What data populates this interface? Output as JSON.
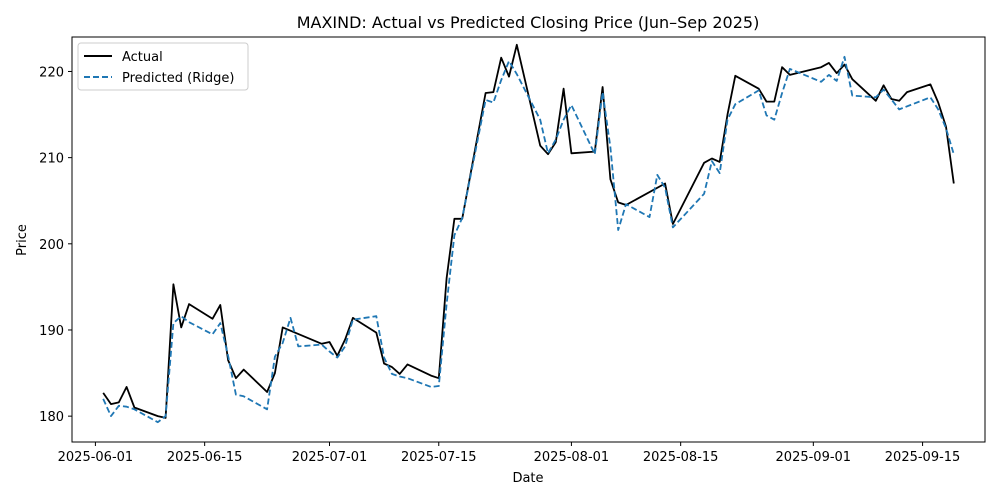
{
  "chart_data": {
    "type": "line",
    "title": "MAXIND: Actual vs Predicted Closing Price (Jun–Sep 2025)",
    "xlabel": "Date",
    "ylabel": "Price",
    "xlim": [
      "2025-05-29",
      "2025-09-23"
    ],
    "ylim": [
      177,
      224
    ],
    "x_ticks": [
      "2025-06-01",
      "2025-06-15",
      "2025-07-01",
      "2025-07-15",
      "2025-08-01",
      "2025-08-15",
      "2025-09-01",
      "2025-09-15"
    ],
    "y_ticks": [
      180,
      190,
      200,
      210,
      220
    ],
    "legend_position": "top-left",
    "series": [
      {
        "name": "Actual",
        "color": "#000000",
        "style": "solid",
        "points": [
          [
            "2025-06-02",
            182.7
          ],
          [
            "2025-06-03",
            181.4
          ],
          [
            "2025-06-04",
            181.6
          ],
          [
            "2025-06-05",
            183.4
          ],
          [
            "2025-06-06",
            181.0
          ],
          [
            "2025-06-09",
            180.0
          ],
          [
            "2025-06-10",
            179.8
          ],
          [
            "2025-06-11",
            195.3
          ],
          [
            "2025-06-12",
            190.3
          ],
          [
            "2025-06-13",
            193.0
          ],
          [
            "2025-06-16",
            191.3
          ],
          [
            "2025-06-17",
            192.9
          ],
          [
            "2025-06-18",
            186.5
          ],
          [
            "2025-06-19",
            184.4
          ],
          [
            "2025-06-20",
            185.4
          ],
          [
            "2025-06-23",
            182.8
          ],
          [
            "2025-06-24",
            185.0
          ],
          [
            "2025-06-25",
            190.3
          ],
          [
            "2025-06-30",
            188.4
          ],
          [
            "2025-07-01",
            188.6
          ],
          [
            "2025-07-02",
            187.0
          ],
          [
            "2025-07-03",
            188.9
          ],
          [
            "2025-07-04",
            191.4
          ],
          [
            "2025-07-07",
            189.7
          ],
          [
            "2025-07-08",
            186.1
          ],
          [
            "2025-07-09",
            185.7
          ],
          [
            "2025-07-10",
            184.9
          ],
          [
            "2025-07-11",
            186.0
          ],
          [
            "2025-07-14",
            184.7
          ],
          [
            "2025-07-15",
            184.4
          ],
          [
            "2025-07-16",
            196.0
          ],
          [
            "2025-07-17",
            202.9
          ],
          [
            "2025-07-18",
            202.9
          ],
          [
            "2025-07-21",
            217.5
          ],
          [
            "2025-07-22",
            217.6
          ],
          [
            "2025-07-23",
            221.6
          ],
          [
            "2025-07-24",
            219.4
          ],
          [
            "2025-07-25",
            223.1
          ],
          [
            "2025-07-28",
            211.4
          ],
          [
            "2025-07-29",
            210.4
          ],
          [
            "2025-07-30",
            211.8
          ],
          [
            "2025-07-31",
            218.0
          ],
          [
            "2025-08-01",
            210.5
          ],
          [
            "2025-08-04",
            210.7
          ],
          [
            "2025-08-05",
            218.2
          ],
          [
            "2025-08-06",
            207.5
          ],
          [
            "2025-08-07",
            204.8
          ],
          [
            "2025-08-08",
            204.5
          ],
          [
            "2025-08-13",
            207.0
          ],
          [
            "2025-08-14",
            202.3
          ],
          [
            "2025-08-18",
            209.4
          ],
          [
            "2025-08-19",
            209.9
          ],
          [
            "2025-08-20",
            209.5
          ],
          [
            "2025-08-21",
            215.0
          ],
          [
            "2025-08-22",
            219.5
          ],
          [
            "2025-08-25",
            218.0
          ],
          [
            "2025-08-26",
            216.5
          ],
          [
            "2025-08-27",
            216.5
          ],
          [
            "2025-08-28",
            220.5
          ],
          [
            "2025-08-29",
            219.6
          ],
          [
            "2025-09-02",
            220.5
          ],
          [
            "2025-09-03",
            221.0
          ],
          [
            "2025-09-04",
            219.8
          ],
          [
            "2025-09-05",
            220.8
          ],
          [
            "2025-09-06",
            219.1
          ],
          [
            "2025-09-09",
            216.6
          ],
          [
            "2025-09-10",
            218.4
          ],
          [
            "2025-09-11",
            216.8
          ],
          [
            "2025-09-12",
            216.6
          ],
          [
            "2025-09-13",
            217.6
          ],
          [
            "2025-09-16",
            218.5
          ],
          [
            "2025-09-17",
            216.4
          ],
          [
            "2025-09-18",
            213.6
          ],
          [
            "2025-09-19",
            207.0
          ]
        ]
      },
      {
        "name": "Predicted (Ridge)",
        "color": "#1f77b4",
        "style": "dashed",
        "points": [
          [
            "2025-06-02",
            182.0
          ],
          [
            "2025-06-03",
            180.0
          ],
          [
            "2025-06-04",
            181.2
          ],
          [
            "2025-06-05",
            181.1
          ],
          [
            "2025-06-06",
            180.8
          ],
          [
            "2025-06-09",
            179.3
          ],
          [
            "2025-06-10",
            180.0
          ],
          [
            "2025-06-11",
            190.8
          ],
          [
            "2025-06-12",
            191.6
          ],
          [
            "2025-06-13",
            190.9
          ],
          [
            "2025-06-16",
            189.5
          ],
          [
            "2025-06-17",
            190.8
          ],
          [
            "2025-06-18",
            187.0
          ],
          [
            "2025-06-19",
            182.5
          ],
          [
            "2025-06-20",
            182.3
          ],
          [
            "2025-06-23",
            180.8
          ],
          [
            "2025-06-24",
            186.9
          ],
          [
            "2025-06-25",
            188.5
          ],
          [
            "2025-06-26",
            191.4
          ],
          [
            "2025-06-27",
            188.1
          ],
          [
            "2025-06-30",
            188.3
          ],
          [
            "2025-07-01",
            187.5
          ],
          [
            "2025-07-02",
            186.8
          ],
          [
            "2025-07-03",
            188.1
          ],
          [
            "2025-07-04",
            191.2
          ],
          [
            "2025-07-07",
            191.6
          ],
          [
            "2025-07-08",
            186.8
          ],
          [
            "2025-07-09",
            184.9
          ],
          [
            "2025-07-10",
            184.6
          ],
          [
            "2025-07-11",
            184.4
          ],
          [
            "2025-07-14",
            183.4
          ],
          [
            "2025-07-15",
            183.5
          ],
          [
            "2025-07-16",
            193.0
          ],
          [
            "2025-07-17",
            201.0
          ],
          [
            "2025-07-18",
            203.0
          ],
          [
            "2025-07-21",
            216.7
          ],
          [
            "2025-07-22",
            216.4
          ],
          [
            "2025-07-23",
            219.0
          ],
          [
            "2025-07-24",
            221.2
          ],
          [
            "2025-07-25",
            219.7
          ],
          [
            "2025-07-28",
            214.4
          ],
          [
            "2025-07-29",
            210.5
          ],
          [
            "2025-07-30",
            212.1
          ],
          [
            "2025-07-31",
            214.4
          ],
          [
            "2025-08-01",
            216.1
          ],
          [
            "2025-08-04",
            210.4
          ],
          [
            "2025-08-05",
            217.6
          ],
          [
            "2025-08-06",
            211.2
          ],
          [
            "2025-08-07",
            201.6
          ],
          [
            "2025-08-08",
            204.6
          ],
          [
            "2025-08-11",
            203.1
          ],
          [
            "2025-08-12",
            208.0
          ],
          [
            "2025-08-13",
            206.5
          ],
          [
            "2025-08-14",
            201.9
          ],
          [
            "2025-08-18",
            205.8
          ],
          [
            "2025-08-19",
            209.6
          ],
          [
            "2025-08-20",
            208.2
          ],
          [
            "2025-08-21",
            214.4
          ],
          [
            "2025-08-22",
            216.2
          ],
          [
            "2025-08-25",
            217.8
          ],
          [
            "2025-08-26",
            214.9
          ],
          [
            "2025-08-27",
            214.4
          ],
          [
            "2025-08-28",
            217.5
          ],
          [
            "2025-08-29",
            220.3
          ],
          [
            "2025-09-02",
            218.8
          ],
          [
            "2025-09-03",
            219.6
          ],
          [
            "2025-09-04",
            218.9
          ],
          [
            "2025-09-05",
            221.7
          ],
          [
            "2025-09-06",
            217.2
          ],
          [
            "2025-09-09",
            217.0
          ],
          [
            "2025-09-10",
            217.9
          ],
          [
            "2025-09-12",
            215.6
          ],
          [
            "2025-09-16",
            217.0
          ],
          [
            "2025-09-17",
            215.6
          ],
          [
            "2025-09-18",
            213.4
          ],
          [
            "2025-09-19",
            210.4
          ]
        ]
      }
    ]
  }
}
